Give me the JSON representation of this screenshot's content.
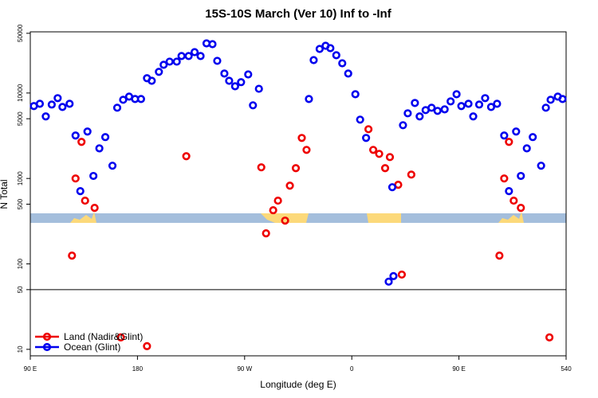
{
  "chart_data": {
    "type": "scatter",
    "title": "15S-10S March (Ver 10)   Inf to -Inf",
    "xlabel": "Longitude (deg E)",
    "ylabel": "N Total",
    "xlim": [
      90,
      540
    ],
    "xticks": [
      {
        "value": 90,
        "label": "90 E"
      },
      180,
      {
        "value": 270,
        "label": "90 W"
      },
      {
        "value": 360,
        "label": "0"
      },
      {
        "value": 450,
        "label": "90 E"
      },
      540
    ],
    "ylim": [
      8.4,
      52000
    ],
    "log_y": true,
    "yticks": [
      10,
      50,
      100,
      500,
      1000,
      5000,
      10000,
      50000
    ],
    "hline": 50,
    "legend": "bottom-left",
    "series": [
      {
        "name": "Land (Nadir&Glint)",
        "color": "#ee0000",
        "x": [
          125,
          128,
          133,
          136,
          144,
          166,
          188,
          221,
          284,
          288,
          294,
          298,
          304,
          308,
          313,
          318,
          322,
          374,
          378,
          383,
          388,
          392,
          399,
          402,
          410,
          484,
          488,
          492,
          496,
          502,
          526
        ],
        "values": [
          125,
          1000,
          2680,
          550,
          453,
          13.8,
          10.9,
          1820,
          1350,
          228,
          425,
          550,
          321,
          824,
          1320,
          2980,
          2160,
          3770,
          2160,
          1940,
          1320,
          1780,
          843,
          75,
          1110,
          125,
          1000,
          2680,
          550,
          453,
          13.8
        ]
      },
      {
        "name": "Ocean (Glint)",
        "color": "#0000ee",
        "x": [
          93,
          98,
          103,
          108,
          113,
          117,
          123,
          128,
          132,
          138,
          143,
          148,
          153,
          159,
          163,
          168,
          173,
          178,
          183,
          188,
          192,
          198,
          202,
          207,
          213,
          217,
          223,
          228,
          233,
          238,
          243,
          247,
          253,
          257,
          262,
          267,
          273,
          277,
          282,
          324,
          328,
          333,
          338,
          342,
          347,
          352,
          357,
          363,
          367,
          372,
          391,
          395,
          394,
          403,
          407,
          413,
          417,
          422,
          427,
          432,
          438,
          443,
          448,
          452,
          458,
          462,
          467,
          472,
          477,
          482,
          488,
          492,
          498,
          502,
          507,
          512,
          519,
          523,
          527,
          533,
          537
        ],
        "values": [
          7030,
          7480,
          5320,
          7330,
          8710,
          6870,
          7480,
          3180,
          710,
          3540,
          1070,
          2250,
          3050,
          1410,
          6730,
          8340,
          9080,
          8510,
          8510,
          14900,
          13900,
          17700,
          21400,
          23300,
          23300,
          27100,
          27100,
          30100,
          27100,
          38100,
          37300,
          23800,
          16900,
          13900,
          12000,
          13400,
          16500,
          7180,
          11200,
          8510,
          24300,
          32800,
          35700,
          33500,
          27700,
          22300,
          16900,
          9680,
          4880,
          2980,
          62,
          72,
          790,
          4200,
          5790,
          7650,
          5320,
          6310,
          6730,
          6180,
          6440,
          7980,
          9680,
          7030,
          7480,
          5320,
          7330,
          8710,
          6870,
          7480,
          3180,
          710,
          3540,
          1070,
          2250,
          3050,
          1410,
          6730,
          8340,
          9080,
          8510
        ]
      }
    ]
  }
}
